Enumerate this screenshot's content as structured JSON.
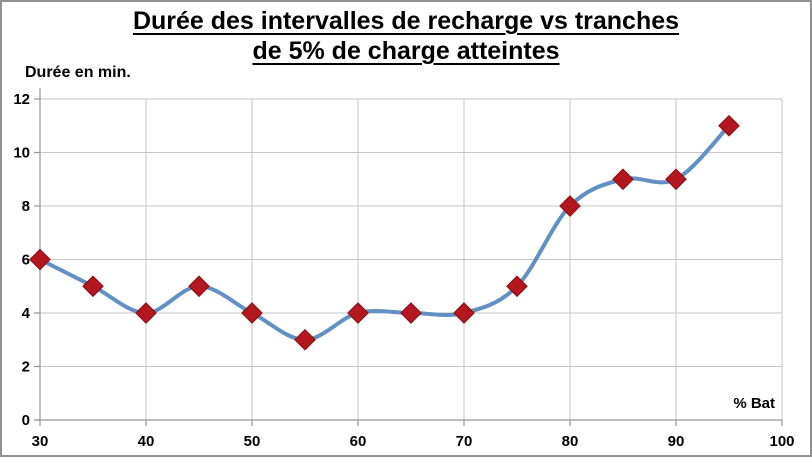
{
  "window": {
    "background": "#ffffff",
    "border_color": "#919191"
  },
  "chart_data": {
    "type": "line",
    "title": "Durée des intervalles de recharge vs tranches de 5% de charge atteintes",
    "title_lines": [
      "Durée des intervalles de recharge vs tranches",
      "de 5% de charge atteintes"
    ],
    "ylabel": "Durée en min.",
    "xlabel": "% Bat",
    "x": [
      30,
      35,
      40,
      45,
      50,
      55,
      60,
      65,
      70,
      75,
      80,
      85,
      90,
      95
    ],
    "values": [
      6,
      5,
      4,
      5,
      4,
      3,
      4,
      4,
      4,
      5,
      8,
      9,
      9,
      11
    ],
    "x_ticks": [
      30,
      40,
      50,
      60,
      70,
      80,
      90,
      100
    ],
    "y_ticks": [
      0,
      2,
      4,
      6,
      8,
      10,
      12
    ],
    "xlim": [
      30,
      100
    ],
    "ylim": [
      0,
      12
    ],
    "grid": true,
    "legend": false,
    "smooth": true,
    "line_color": "#6090C4",
    "marker_shape": "diamond",
    "marker_color": "#B5171E",
    "marker_edge_color": "#8C1117",
    "grid_color": "#C6C6C6",
    "axis_color": "#969696",
    "text_color": "#000000"
  }
}
